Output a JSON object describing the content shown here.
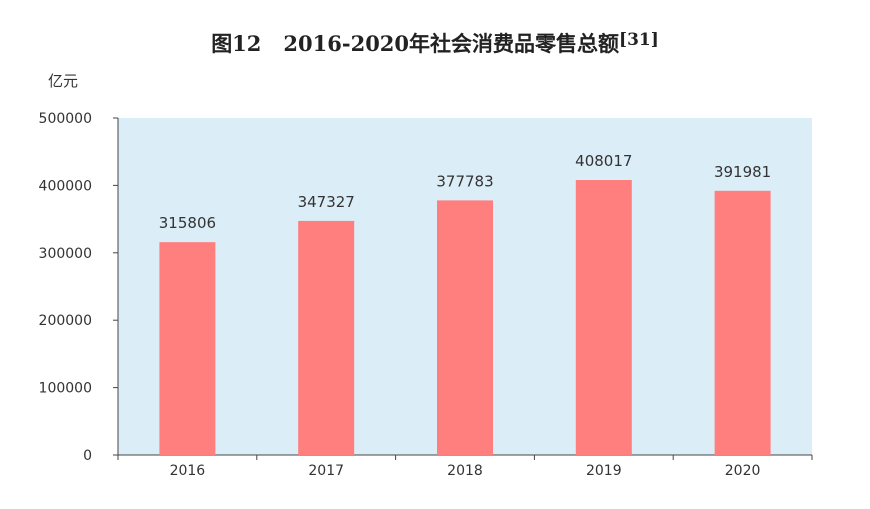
{
  "figure": {
    "title_prefix": "图12",
    "title_text": "2016-2020年社会消费品零售总额",
    "title_ref": "[31]",
    "unit": "亿元"
  },
  "colors": {
    "plot_bg": "#dbeef8",
    "bar": "#ff7f7f",
    "axis": "#444444"
  },
  "chart_data": {
    "type": "bar",
    "title": "2016-2020年社会消费品零售总额",
    "ylabel": "亿元",
    "categories": [
      "2016",
      "2017",
      "2018",
      "2019",
      "2020"
    ],
    "values": [
      315806,
      347327,
      377783,
      408017,
      391981
    ],
    "ylim": [
      0,
      500000
    ],
    "yticks": [
      0,
      100000,
      200000,
      300000,
      400000,
      500000
    ],
    "data_labels": [
      "315806",
      "347327",
      "377783",
      "408017",
      "391981"
    ],
    "grid": false,
    "legend": "none"
  }
}
